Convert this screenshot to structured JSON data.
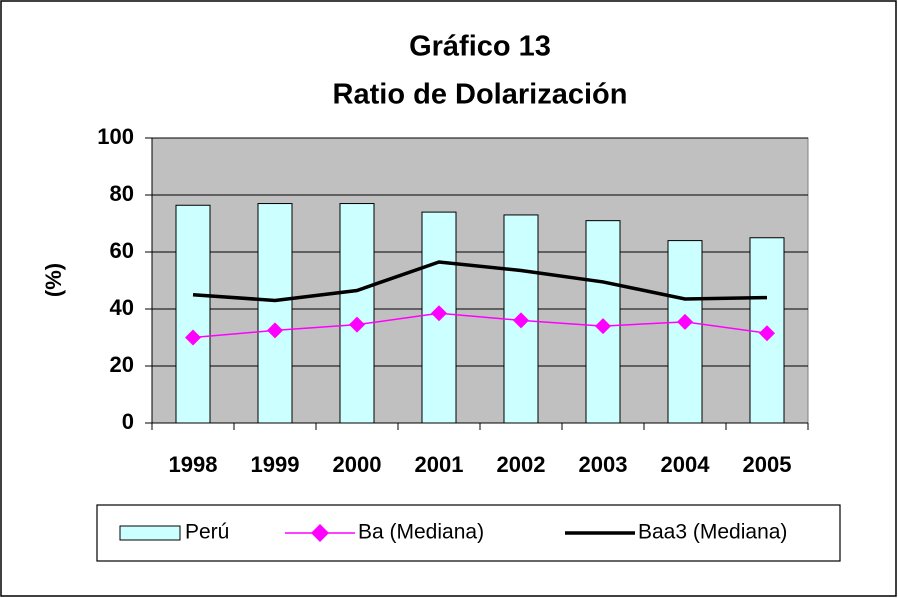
{
  "chart_data": {
    "type": "bar",
    "title": "Gráfico 13",
    "subtitle": "Ratio de Dolarización",
    "y_label": "(%)",
    "categories": [
      "1998",
      "1999",
      "2000",
      "2001",
      "2002",
      "2003",
      "2004",
      "2005"
    ],
    "series": [
      {
        "name": "Perú",
        "type": "bar",
        "color": "#ccffff",
        "values": [
          76.4,
          77,
          77,
          74,
          73,
          71,
          64,
          65
        ]
      },
      {
        "name": "Ba (Mediana)",
        "type": "line",
        "color": "#ff00ff",
        "marker": "diamond",
        "values": [
          30,
          32.5,
          34.5,
          38.5,
          36,
          34,
          35.5,
          31.5
        ]
      },
      {
        "name": "Baa3 (Mediana)",
        "type": "line",
        "color": "#000000",
        "values": [
          45,
          43,
          46.5,
          56.5,
          53.5,
          49.5,
          43.5,
          44
        ]
      }
    ],
    "ylim": [
      0,
      100
    ],
    "yticks": [
      0,
      20,
      40,
      60,
      80,
      100
    ],
    "grid": true,
    "plot_background": "#c0c0c0",
    "legend": "bottom"
  }
}
